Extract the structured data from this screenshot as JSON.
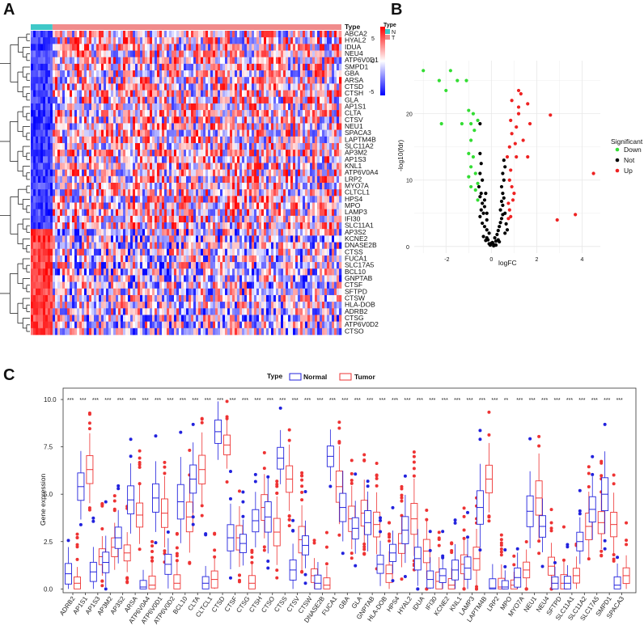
{
  "panels": {
    "a": "A",
    "b": "B",
    "c": "C"
  },
  "chart_data": [
    {
      "type": "heatmap",
      "title": "",
      "annotation_title": "Type",
      "annotation_groups": [
        {
          "name": "N",
          "color": "#3fc8c8"
        },
        {
          "name": "T",
          "color": "#f08c8c"
        }
      ],
      "annotation_legend_title": "Type",
      "scale_title": "",
      "scale_ticks": [
        "5",
        "0",
        "-5"
      ],
      "scale_colors": [
        "#ff0000",
        "#ffffff",
        "#0000ff"
      ],
      "genes": [
        "ABCA2",
        "HYAL2",
        "IDUA",
        "NEU4",
        "ATP6V0D1",
        "SMPD1",
        "GBA",
        "ARSA",
        "CTSD",
        "CTSH",
        "GLA",
        "AP1S1",
        "CLTA",
        "CTSV",
        "NEU1",
        "SPACA3",
        "LAPTM4B",
        "SLC11A2",
        "AP3M2",
        "AP1S3",
        "KNL1",
        "ATP6V0A4",
        "LRP2",
        "MYO7A",
        "CLTCL1",
        "HPS4",
        "MPO",
        "LAMP3",
        "IFI30",
        "SLC11A1",
        "AP3S2",
        "KCNE2",
        "DNASE2B",
        "CTSS",
        "FUCA1",
        "SLC17A5",
        "BCL10",
        "GNPTAB",
        "CTSF",
        "SFTPD",
        "CTSW",
        "HLA-DOB",
        "ADRB2",
        "CTSG",
        "ATP6V0D2",
        "CTSO"
      ],
      "normal_fraction": 0.07
    },
    {
      "type": "scatter",
      "title": "",
      "xlabel": "logFC",
      "ylabel": "-log10(fdr)",
      "xticks": [
        -2,
        0,
        2,
        4
      ],
      "yticks": [
        0,
        10,
        20
      ],
      "xlim": [
        -3.4,
        4.8
      ],
      "ylim": [
        -1,
        28
      ],
      "legend_title": "Significant",
      "series": [
        {
          "name": "Down",
          "color": "#33dd33",
          "points": [
            [
              -3.0,
              26.5
            ],
            [
              -2.3,
              25
            ],
            [
              -1.8,
              26.5
            ],
            [
              -1.5,
              25
            ],
            [
              -1.1,
              25
            ],
            [
              -2.0,
              23.5
            ],
            [
              -1.0,
              20.5
            ],
            [
              -0.9,
              18.5
            ],
            [
              -0.8,
              20
            ],
            [
              -0.75,
              17.5
            ],
            [
              -0.6,
              19
            ],
            [
              -0.9,
              16
            ],
            [
              -2.2,
              18.5
            ],
            [
              -1.3,
              18.5
            ],
            [
              -1.0,
              14
            ],
            [
              -0.8,
              13.5
            ],
            [
              -0.9,
              12
            ],
            [
              -0.7,
              11
            ],
            [
              -1.0,
              10.5
            ],
            [
              -0.6,
              9.5
            ],
            [
              -0.7,
              8.5
            ],
            [
              -0.9,
              9.0
            ],
            [
              -0.6,
              7.0
            ]
          ]
        },
        {
          "name": "Not",
          "color": "#000000",
          "points": [
            [
              -0.5,
              18.5
            ],
            [
              -0.5,
              14
            ],
            [
              -0.45,
              12.5
            ],
            [
              -0.5,
              11
            ],
            [
              -0.4,
              10
            ],
            [
              -0.55,
              9
            ],
            [
              -0.45,
              8
            ],
            [
              -0.5,
              7.5
            ],
            [
              -0.4,
              6.5
            ],
            [
              -0.3,
              6
            ],
            [
              -0.45,
              5.5
            ],
            [
              -0.35,
              5
            ],
            [
              -0.5,
              4.5
            ],
            [
              -0.2,
              4
            ],
            [
              -0.4,
              3.5
            ],
            [
              -0.3,
              3
            ],
            [
              -0.2,
              2.5
            ],
            [
              -0.1,
              2
            ],
            [
              -0.35,
              1.5
            ],
            [
              -0.15,
              1
            ],
            [
              0,
              0.5
            ],
            [
              0.1,
              0.3
            ],
            [
              0.2,
              0.8
            ],
            [
              -0.05,
              0.2
            ],
            [
              0.05,
              0.6
            ],
            [
              -0.25,
              0.9
            ],
            [
              0.15,
              1.3
            ],
            [
              0.25,
              1.8
            ],
            [
              0.3,
              2.4
            ],
            [
              0.35,
              3
            ],
            [
              0.4,
              3.6
            ],
            [
              0.45,
              4.2
            ],
            [
              0.5,
              4.8
            ],
            [
              0.4,
              5.5
            ],
            [
              0.5,
              6.2
            ],
            [
              0.45,
              6.8
            ],
            [
              0.55,
              7.3
            ],
            [
              0.5,
              8
            ],
            [
              0.45,
              9
            ],
            [
              0.55,
              10
            ],
            [
              0.5,
              11
            ],
            [
              0.6,
              12
            ],
            [
              0.55,
              13
            ],
            [
              -0.3,
              7
            ],
            [
              -0.25,
              8
            ],
            [
              -0.2,
              5
            ],
            [
              0.3,
              1
            ],
            [
              0.6,
              2
            ],
            [
              0.7,
              2.5
            ],
            [
              0.65,
              3.4
            ],
            [
              0.1,
              0.1
            ],
            [
              -0.1,
              0.4
            ],
            [
              0.2,
              0.2
            ],
            [
              -0.2,
              1.3
            ],
            [
              0.35,
              0.7
            ],
            [
              0.6,
              5
            ]
          ]
        },
        {
          "name": "Up",
          "color": "#ee2222",
          "points": [
            [
              1.2,
              23.5
            ],
            [
              1.3,
              23
            ],
            [
              0.9,
              22
            ],
            [
              1.2,
              21
            ],
            [
              1.6,
              21.5
            ],
            [
              1.2,
              20
            ],
            [
              2.6,
              19.8
            ],
            [
              0.85,
              19
            ],
            [
              1.7,
              18.5
            ],
            [
              1.1,
              18
            ],
            [
              0.9,
              17
            ],
            [
              1.4,
              16
            ],
            [
              1.05,
              15.5
            ],
            [
              0.8,
              15
            ],
            [
              0.7,
              13.5
            ],
            [
              1.1,
              13.5
            ],
            [
              1.6,
              13.5
            ],
            [
              4.5,
              11
            ],
            [
              0.85,
              11.5
            ],
            [
              0.8,
              10
            ],
            [
              0.9,
              9
            ],
            [
              1.0,
              8
            ],
            [
              0.95,
              7
            ],
            [
              0.75,
              6.5
            ],
            [
              0.8,
              5.5
            ],
            [
              0.85,
              4.5
            ],
            [
              0.75,
              4.2
            ],
            [
              3.7,
              4.8
            ],
            [
              2.9,
              4.0
            ]
          ]
        }
      ]
    },
    {
      "type": "box",
      "title": "",
      "xlabel": "",
      "ylabel": "Gene expression",
      "ylim": [
        -0.2,
        10.6
      ],
      "yticks": [
        "0.0",
        "2.5",
        "5.0",
        "7.5",
        "10.0"
      ],
      "legend_title": "Type",
      "groups": [
        {
          "name": "Normal",
          "color": "#2222dd"
        },
        {
          "name": "Tumor",
          "color": "#ee3333"
        }
      ],
      "significance_level": 10.0,
      "categories": [
        "ADRB2",
        "AP1S1",
        "AP1S3",
        "AP3M2",
        "AP3S2",
        "ARSA",
        "ATP6V0A4",
        "ATP6V0D1",
        "ATP6V0D2",
        "BCL10",
        "CLTA",
        "CLTCL1",
        "CTSD",
        "CTSF",
        "CTSG",
        "CTSH",
        "CTSO",
        "CTSS",
        "CTSV",
        "CTSW",
        "DNASE2B",
        "FUCA1",
        "GBA",
        "GLA",
        "GNPTAB",
        "HLA-DOB",
        "HPS4",
        "HYAL2",
        "IDUA",
        "IFI30",
        "KCNE2",
        "KNL1",
        "LAMP3",
        "LAPTM4B",
        "LRP2",
        "MPO",
        "MYO7A",
        "NEU1",
        "NEU4",
        "SFTPD",
        "SLC11A1",
        "SLC11A2",
        "SLC17A5",
        "SMPD1",
        "SPACA3"
      ],
      "significance": [
        "***",
        "***",
        "***",
        "***",
        "***",
        "***",
        "***",
        "***",
        "***",
        "***",
        "***",
        "***",
        "***",
        "***",
        "***",
        "***",
        "***",
        "***",
        "***",
        "***",
        "***",
        "***",
        "***",
        "***",
        "***",
        "***",
        "***",
        "***",
        "***",
        "***",
        "***",
        "***",
        "***",
        "***",
        "***",
        "**",
        "***",
        "***",
        "***",
        "***",
        "***",
        "***",
        "***",
        "***",
        "***"
      ],
      "series": [
        {
          "name": "Normal",
          "medians": [
            0.8,
            5.4,
            0.9,
            1.4,
            2.7,
            4.7,
            0.1,
            4.8,
            1.3,
            4.6,
            5.8,
            0.3,
            8.3,
            2.7,
            2.4,
            3.6,
            3.8,
            6.9,
            1.0,
            2.3,
            0.3,
            7.0,
            4.3,
            3.2,
            3.5,
            1.3,
            1.9,
            3.1,
            1.6,
            0.5,
            0.7,
            1.0,
            1.1,
            4.3,
            0.05,
            0.1,
            0.6,
            4.1,
            3.3,
            0.3,
            0.3,
            2.5,
            4.2,
            5.0,
            0.2
          ]
        },
        {
          "name": "Tumor",
          "medians": [
            0.3,
            6.3,
            1.7,
            2.2,
            1.9,
            3.9,
            0.2,
            4.0,
            0.3,
            3.8,
            6.3,
            0.5,
            7.6,
            2.7,
            0.3,
            4.3,
            3.0,
            5.8,
            2.6,
            0.7,
            0.2,
            5.4,
            3.7,
            4.0,
            3.4,
            0.8,
            2.4,
            3.7,
            2.0,
            0.4,
            0.2,
            1.3,
            1.6,
            5.8,
            0.1,
            0.2,
            1.0,
            4.8,
            1.2,
            0.3,
            0.7,
            3.3,
            3.5,
            3.4,
            0.7
          ]
        }
      ]
    }
  ]
}
